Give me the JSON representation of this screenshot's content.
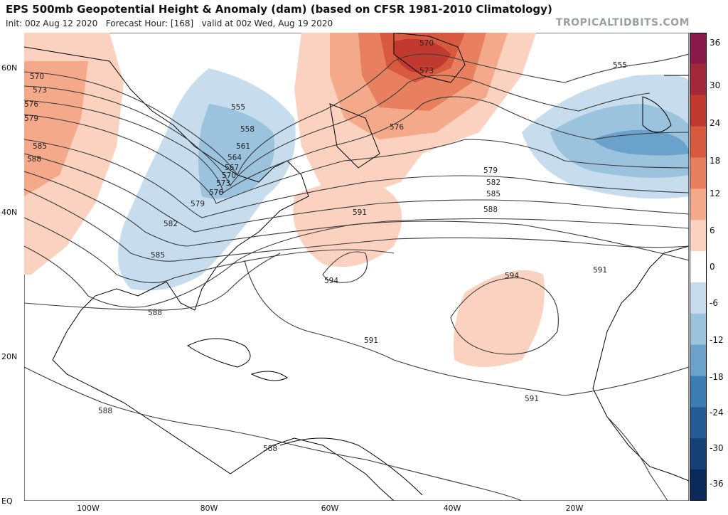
{
  "header": {
    "title": "EPS 500mb Geopotential Height & Anomaly (dam) (based on CFSR 1981-2010 Climatology)",
    "init": "Init: 00z Aug 12 2020",
    "forecast_hour": "Forecast Hour: [168]",
    "valid": "valid at 00z Wed, Aug 19 2020",
    "brand": "TROPICALTIDBITS.COM"
  },
  "axes": {
    "lat_labels": [
      "60N",
      "40N",
      "20N",
      "EQ"
    ],
    "lon_labels": [
      "100W",
      "80W",
      "60W",
      "40W",
      "20W"
    ]
  },
  "colorbar": {
    "ticks": [
      "36",
      "30",
      "24",
      "18",
      "12",
      "6",
      "0",
      "-6",
      "-12",
      "-18",
      "-24",
      "-30",
      "-36"
    ],
    "colors": [
      "#8b1a4a",
      "#a3283b",
      "#c23a2f",
      "#d85a3e",
      "#e8805f",
      "#f4a98a",
      "#fbd1bf",
      "#ffffff",
      "#c7dced",
      "#9cc3de",
      "#6aa2cc",
      "#3d7db5",
      "#235b96",
      "#143f77",
      "#0b2a5c"
    ]
  },
  "contour_labels": {
    "west": [
      "570",
      "573",
      "576",
      "579",
      "585",
      "588"
    ],
    "trough": [
      "555",
      "558",
      "561",
      "564",
      "567",
      "570",
      "573",
      "576",
      "579",
      "582",
      "585"
    ],
    "greenland": [
      "570",
      "573"
    ],
    "mid": [
      "576",
      "579",
      "582",
      "585",
      "588",
      "591",
      "594"
    ],
    "europe": [
      "555"
    ],
    "east": [
      "591",
      "594",
      "591"
    ],
    "south": [
      "591",
      "588",
      "588",
      "588"
    ]
  }
}
